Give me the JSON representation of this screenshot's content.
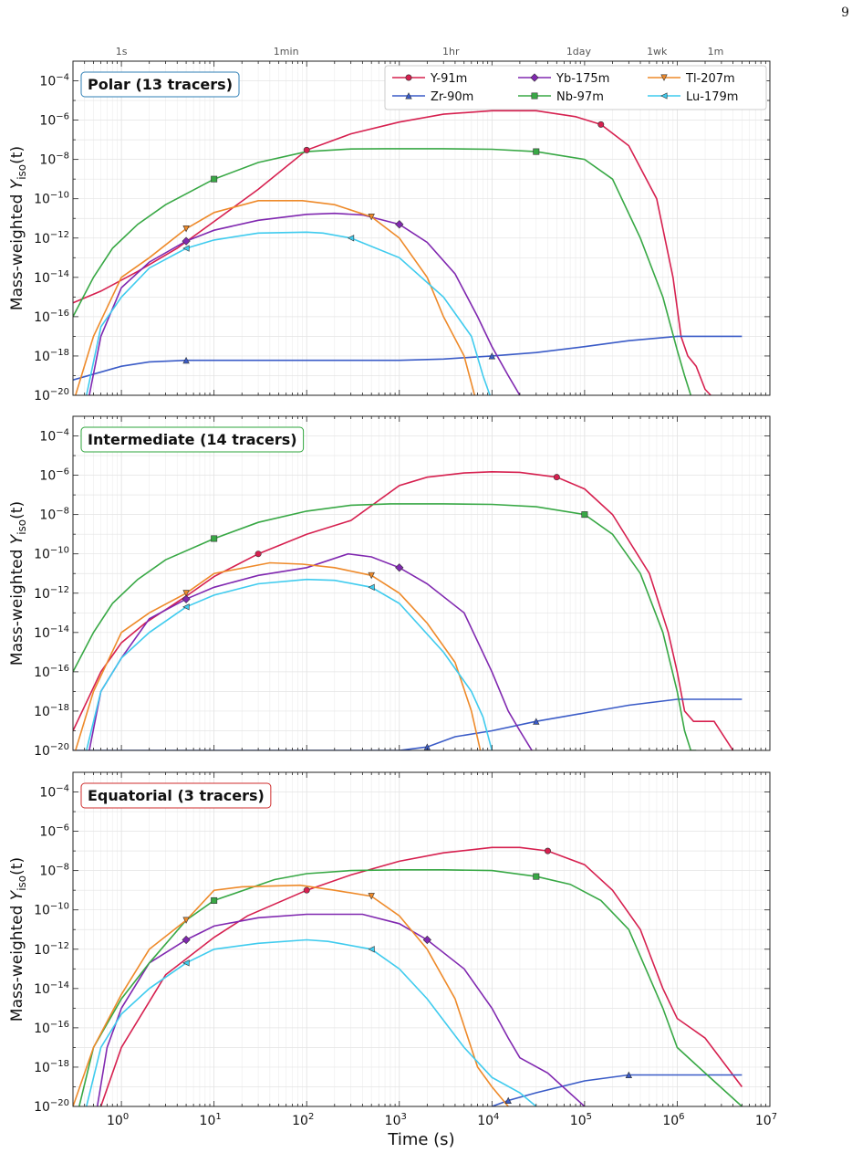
{
  "page_number": "9",
  "chart_data": [
    {
      "type": "line",
      "panel_label": "Polar  (13 tracers)",
      "label_color": "#2f7fb5",
      "xlabel": "",
      "ylabel_text": "Mass-weighted ",
      "ylabel_var": "Y",
      "ylabel_sub": "iso",
      "ylabel_tail": "(t)",
      "xscale": "log",
      "yscale": "log",
      "xlim": [
        0.3,
        10000000
      ],
      "ylim": [
        1e-20,
        0.001
      ],
      "grid": true,
      "legend": "top-right",
      "series": [
        {
          "name": "Y-91m",
          "color": "#d6204f",
          "marker": "circle",
          "x": [
            0.3,
            0.6,
            1.5,
            4,
            10,
            30,
            100,
            300,
            1000,
            3000,
            10000,
            30000,
            80000,
            150000,
            300000,
            600000,
            900000,
            1100000,
            1300000,
            1600000,
            2000000,
            2300000
          ],
          "y": [
            5e-16,
            2e-15,
            2e-14,
            3e-13,
            7e-12,
            3e-10,
            3e-08,
            2e-07,
            8e-07,
            2e-06,
            3e-06,
            3e-06,
            1.5e-06,
            6e-07,
            5e-08,
            1e-10,
            1e-14,
            1e-17,
            1e-18,
            3e-19,
            2e-20,
            1e-20
          ]
        },
        {
          "name": "Zr-90m",
          "color": "#3a5bc7",
          "marker": "triangle-up",
          "x": [
            0.3,
            1,
            2,
            5,
            10,
            100,
            1000,
            3000,
            10000,
            30000,
            100000,
            300000,
            1000000,
            5000000
          ],
          "y": [
            6e-20,
            3e-19,
            5e-19,
            6e-19,
            6e-19,
            6e-19,
            6e-19,
            7e-19,
            1e-18,
            1.5e-18,
            3e-18,
            6e-18,
            1e-17,
            1e-17
          ]
        },
        {
          "name": "Yb-175m",
          "color": "#8028b0",
          "marker": "diamond",
          "x": [
            0.45,
            0.6,
            1,
            2,
            5,
            10,
            30,
            100,
            200,
            400,
            1000,
            2000,
            4000,
            7000,
            10000,
            15000,
            20000
          ],
          "y": [
            1e-20,
            1e-17,
            3e-15,
            6e-14,
            7e-13,
            2.5e-12,
            8e-12,
            1.6e-11,
            1.8e-11,
            1.5e-11,
            5e-12,
            6e-13,
            1.5e-14,
            1e-16,
            3e-18,
            1e-19,
            1e-20
          ]
        },
        {
          "name": "Nb-97m",
          "color": "#38a845",
          "marker": "square",
          "x": [
            0.3,
            0.5,
            0.8,
            1.5,
            3,
            10,
            30,
            100,
            300,
            700,
            3000,
            10000,
            30000,
            100000,
            200000,
            400000,
            700000,
            1000000,
            1200000,
            1400000
          ],
          "y": [
            1e-16,
            1e-14,
            3e-13,
            5e-12,
            5e-11,
            1e-09,
            7e-09,
            2.5e-08,
            3.4e-08,
            3.5e-08,
            3.5e-08,
            3.3e-08,
            2.5e-08,
            1e-08,
            1e-09,
            1e-12,
            1e-15,
            2e-18,
            1e-19,
            1e-20
          ]
        },
        {
          "name": "Tl-207m",
          "color": "#ee8a2a",
          "marker": "triangle-down",
          "x": [
            0.32,
            0.5,
            1,
            2,
            5,
            10,
            30,
            90,
            200,
            500,
            1000,
            2000,
            3000,
            5000,
            6500
          ],
          "y": [
            1e-20,
            1e-17,
            1e-14,
            1e-13,
            3e-12,
            2e-11,
            8e-11,
            8e-11,
            5e-11,
            1.2e-11,
            1e-12,
            1e-14,
            1e-16,
            1e-18,
            1e-20
          ]
        },
        {
          "name": "Lu-179m",
          "color": "#3fcbee",
          "marker": "triangle-left",
          "x": [
            0.42,
            0.6,
            1,
            2,
            5,
            10,
            30,
            100,
            150,
            300,
            1000,
            3000,
            6000,
            8000,
            9500
          ],
          "y": [
            1e-20,
            3e-17,
            1e-15,
            3e-14,
            3e-13,
            8e-13,
            1.8e-12,
            2e-12,
            1.8e-12,
            1e-12,
            1e-13,
            1e-15,
            1e-17,
            1e-19,
            1e-20
          ]
        }
      ]
    },
    {
      "type": "line",
      "panel_label": "Intermediate  (14 tracers)",
      "label_color": "#2ea53b",
      "xlabel": "",
      "ylabel_text": "Mass-weighted ",
      "ylabel_var": "Y",
      "ylabel_sub": "iso",
      "ylabel_tail": "(t)",
      "xscale": "log",
      "yscale": "log",
      "xlim": [
        0.3,
        10000000
      ],
      "ylim": [
        1e-20,
        0.001
      ],
      "grid": true,
      "legend": "none",
      "series": [
        {
          "name": "Y-91m",
          "color": "#d6204f",
          "marker": "circle",
          "x": [
            0.3,
            0.6,
            1,
            1.8,
            5,
            10,
            30,
            100,
            300,
            1000,
            2000,
            5000,
            10000,
            20000,
            50000,
            100000,
            200000,
            500000,
            800000,
            1000000,
            1200000,
            1500000,
            2500000,
            4000000
          ],
          "y": [
            1e-19,
            1e-16,
            3e-15,
            3e-14,
            7e-13,
            7e-12,
            1e-10,
            1e-09,
            5e-09,
            3e-07,
            8e-07,
            1.3e-06,
            1.5e-06,
            1.4e-06,
            8e-07,
            2e-07,
            1e-08,
            1e-11,
            1e-14,
            1e-16,
            1e-18,
            3e-19,
            3e-19,
            1e-20
          ]
        },
        {
          "name": "Zr-90m",
          "color": "#3a5bc7",
          "marker": "triangle-up",
          "x": [
            0.3,
            1.5,
            1000,
            2000,
            4000,
            10000,
            30000,
            100000,
            300000,
            1000000,
            5000000
          ],
          "y": [
            1e-20,
            1e-20,
            1e-20,
            1.5e-20,
            5e-20,
            1e-19,
            3e-19,
            8e-19,
            2e-18,
            4e-18,
            4e-18
          ]
        },
        {
          "name": "Yb-175m",
          "color": "#8028b0",
          "marker": "diamond",
          "x": [
            0.45,
            0.6,
            1,
            2,
            5,
            10,
            30,
            100,
            280,
            500,
            1000,
            2000,
            5000,
            10000,
            15000,
            20000,
            27000
          ],
          "y": [
            1e-20,
            1e-17,
            5e-16,
            5e-14,
            5e-13,
            2e-12,
            8e-12,
            2e-11,
            1e-10,
            7e-11,
            2e-11,
            3e-12,
            1e-13,
            1e-16,
            1e-18,
            1e-19,
            1e-20
          ]
        },
        {
          "name": "Nb-97m",
          "color": "#38a845",
          "marker": "square",
          "x": [
            0.3,
            0.5,
            0.8,
            1.5,
            3,
            10,
            30,
            100,
            300,
            800,
            3000,
            10000,
            30000,
            100000,
            200000,
            400000,
            700000,
            1000000,
            1200000,
            1400000,
            1600000
          ],
          "y": [
            1e-16,
            1e-14,
            3e-13,
            5e-12,
            5e-11,
            6e-10,
            4e-09,
            1.5e-08,
            3e-08,
            3.5e-08,
            3.5e-08,
            3.3e-08,
            2.5e-08,
            1e-08,
            1e-09,
            1e-11,
            1e-14,
            1e-17,
            1e-19,
            1e-20,
            1e-20
          ]
        },
        {
          "name": "Tl-207m",
          "color": "#ee8a2a",
          "marker": "triangle-down",
          "x": [
            0.32,
            0.5,
            1,
            2,
            5,
            10,
            40,
            90,
            200,
            500,
            1000,
            2000,
            4000,
            6000,
            7500
          ],
          "y": [
            1e-20,
            1e-17,
            1e-14,
            1e-13,
            1e-12,
            1e-11,
            3.5e-11,
            3e-11,
            2e-11,
            8e-12,
            1e-12,
            3e-14,
            3e-16,
            1e-18,
            1e-20
          ]
        },
        {
          "name": "Lu-179m",
          "color": "#3fcbee",
          "marker": "triangle-left",
          "x": [
            0.42,
            0.6,
            1,
            2,
            5,
            10,
            30,
            100,
            200,
            500,
            1000,
            3000,
            6000,
            8000,
            10000
          ],
          "y": [
            1e-20,
            1e-17,
            5e-16,
            1e-14,
            2e-13,
            8e-13,
            3e-12,
            5e-12,
            4.5e-12,
            2e-12,
            3e-13,
            1e-15,
            1e-17,
            5e-19,
            1e-20
          ]
        }
      ]
    },
    {
      "type": "line",
      "panel_label": "Equatorial  (3 tracers)",
      "label_color": "#cf2d2d",
      "xlabel": "Time (s)",
      "ylabel_text": "Mass-weighted ",
      "ylabel_var": "Y",
      "ylabel_sub": "iso",
      "ylabel_tail": "(t)",
      "xscale": "log",
      "yscale": "log",
      "xlim": [
        0.3,
        10000000
      ],
      "ylim": [
        1e-20,
        0.001
      ],
      "grid": true,
      "legend": "none",
      "x_tick_labels": [
        "10^0",
        "10^1",
        "10^2",
        "10^3",
        "10^4",
        "10^5",
        "10^6",
        "10^7"
      ],
      "series": [
        {
          "name": "Y-91m",
          "color": "#d6204f",
          "marker": "circle",
          "x": [
            0.6,
            1,
            3,
            10,
            23,
            100,
            300,
            1000,
            3000,
            10000,
            20000,
            40000,
            100000,
            200000,
            400000,
            700000,
            1000000,
            2000000,
            5000000
          ],
          "y": [
            1e-20,
            1e-17,
            5e-14,
            4e-12,
            5e-11,
            1e-09,
            6e-09,
            3e-08,
            8e-08,
            1.5e-07,
            1.5e-07,
            1e-07,
            2e-08,
            1e-09,
            1e-11,
            1e-14,
            3e-16,
            3e-17,
            1e-19
          ]
        },
        {
          "name": "Zr-90m",
          "color": "#3a5bc7",
          "marker": "triangle-up",
          "x": [
            10000,
            15000,
            30000,
            100000,
            300000,
            1000000,
            5000000
          ],
          "y": [
            1e-20,
            2e-20,
            5e-20,
            2e-19,
            4e-19,
            4e-19,
            4e-19
          ]
        },
        {
          "name": "Yb-175m",
          "color": "#8028b0",
          "marker": "diamond",
          "x": [
            0.55,
            0.7,
            1,
            2,
            5,
            10,
            30,
            100,
            400,
            1000,
            2000,
            5000,
            10000,
            15000,
            20000,
            40000,
            100000
          ],
          "y": [
            1e-20,
            1e-17,
            1e-15,
            2e-13,
            3e-12,
            1.5e-11,
            4e-11,
            6e-11,
            6e-11,
            2e-11,
            3e-12,
            1e-13,
            1e-15,
            3e-17,
            3e-18,
            5e-19,
            1e-20
          ]
        },
        {
          "name": "Nb-97m",
          "color": "#38a845",
          "marker": "square",
          "x": [
            0.35,
            0.5,
            1,
            2,
            5,
            10,
            45,
            100,
            300,
            1000,
            3000,
            10000,
            30000,
            70000,
            150000,
            300000,
            700000,
            1000000,
            2000000,
            5000000
          ],
          "y": [
            1e-20,
            1e-17,
            3e-15,
            2e-13,
            3e-11,
            3e-10,
            3.5e-09,
            7e-09,
            1e-08,
            1.1e-08,
            1.1e-08,
            1e-08,
            5e-09,
            2e-09,
            3e-10,
            1e-11,
            1e-15,
            1e-17,
            5e-19,
            1e-20
          ]
        },
        {
          "name": "Tl-207m",
          "color": "#ee8a2a",
          "marker": "triangle-down",
          "x": [
            0.3,
            0.5,
            1,
            2,
            5,
            10,
            20,
            85,
            200,
            500,
            1000,
            2000,
            4000,
            7000,
            10000,
            15000
          ],
          "y": [
            1e-20,
            1e-17,
            5e-15,
            1e-12,
            3e-11,
            1e-09,
            1.5e-09,
            1.8e-09,
            1e-09,
            5e-10,
            5e-11,
            1e-12,
            3e-15,
            1e-18,
            1e-19,
            1e-20
          ]
        },
        {
          "name": "Lu-179m",
          "color": "#3fcbee",
          "marker": "triangle-left",
          "x": [
            0.42,
            0.6,
            1,
            2,
            5,
            10,
            30,
            100,
            170,
            500,
            1000,
            2000,
            5000,
            10000,
            20000,
            30000
          ],
          "y": [
            1e-20,
            1e-17,
            5e-16,
            1e-14,
            2e-13,
            1e-12,
            2e-12,
            3e-12,
            2.5e-12,
            1e-12,
            1e-13,
            3e-15,
            1e-17,
            3e-19,
            5e-20,
            1e-20
          ]
        }
      ]
    }
  ],
  "top_axis": {
    "labels": [
      "1s",
      "1min",
      "1hr",
      "1day",
      "1wk",
      "1m"
    ],
    "seconds": [
      1,
      60,
      3600,
      86400,
      604800,
      2592000
    ]
  }
}
